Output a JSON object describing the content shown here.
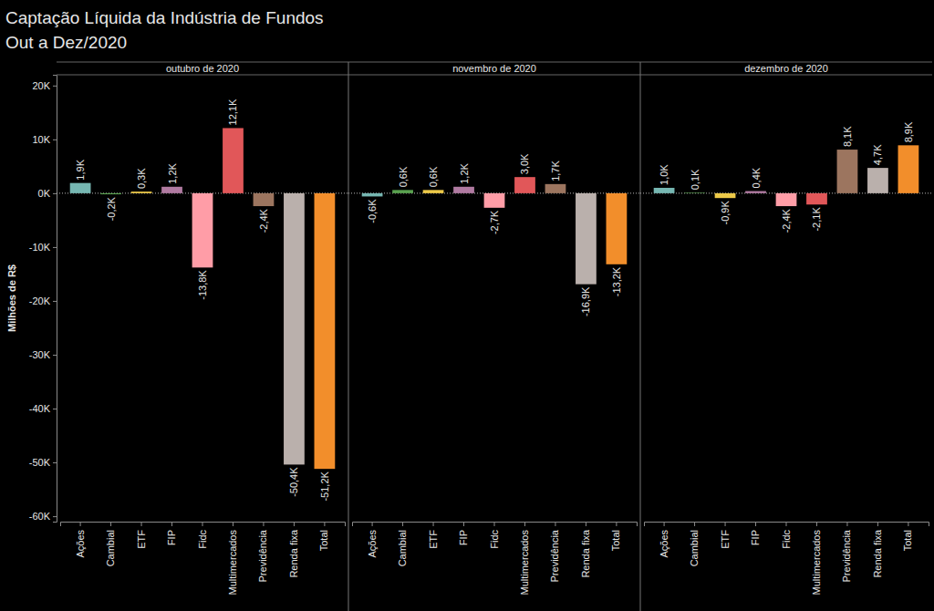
{
  "chart_data": {
    "type": "bar",
    "title": "Captação Líquida da Indústria de Fundos",
    "subtitle": "Out a Dez/2020",
    "y_label": "Milhões de R$",
    "ylim": [
      -61000,
      22000
    ],
    "yticks": [
      {
        "value": -60000,
        "label": "-60K"
      },
      {
        "value": -50000,
        "label": "-50K"
      },
      {
        "value": -40000,
        "label": "-40K"
      },
      {
        "value": -30000,
        "label": "-30K"
      },
      {
        "value": -20000,
        "label": "-20K"
      },
      {
        "value": -10000,
        "label": "-10K"
      },
      {
        "value": 0,
        "label": "0K"
      },
      {
        "value": 10000,
        "label": "10K"
      },
      {
        "value": 20000,
        "label": "20K"
      }
    ],
    "grid": false,
    "data_labels": true,
    "panels": [
      {
        "title": "outubro de 2020",
        "categories": [
          "Ações",
          "Cambial",
          "ETF",
          "FIP",
          "Fidc",
          "Multimercados",
          "Previdência",
          "Renda fixa",
          "Total"
        ],
        "values": [
          1900,
          -200,
          300,
          1200,
          -13800,
          12100,
          -2400,
          -50400,
          -51200
        ],
        "value_labels": [
          "1,9K",
          "-0,2K",
          "0,3K",
          "1,2K",
          "-13,8K",
          "12,1K",
          "-2,4K",
          "-50,4K",
          "-51,2K"
        ],
        "colors": [
          "#76b7b2",
          "#59a14f",
          "#edc948",
          "#b07aa1",
          "#ff9da7",
          "#e15759",
          "#9c755f",
          "#bab0ac",
          "#f28e2b"
        ]
      },
      {
        "title": "novembro de 2020",
        "categories": [
          "Ações",
          "Cambial",
          "ETF",
          "FIP",
          "Fidc",
          "Multimercados",
          "Previdência",
          "Renda fixa",
          "Total"
        ],
        "values": [
          -600,
          600,
          600,
          1200,
          -2700,
          3000,
          1700,
          -16900,
          -13200
        ],
        "value_labels": [
          "-0,6K",
          "0,6K",
          "0,6K",
          "1,2K",
          "-2,7K",
          "3,0K",
          "1,7K",
          "-16,9K",
          "-13,2K"
        ],
        "colors": [
          "#76b7b2",
          "#59a14f",
          "#edc948",
          "#b07aa1",
          "#ff9da7",
          "#e15759",
          "#9c755f",
          "#bab0ac",
          "#f28e2b"
        ]
      },
      {
        "title": "dezembro de 2020",
        "categories": [
          "Ações",
          "Cambial",
          "ETF",
          "FIP",
          "Fidc",
          "Multimercados",
          "Previdência",
          "Renda fixa",
          "Total"
        ],
        "values": [
          1000,
          100,
          -900,
          400,
          -2400,
          -2100,
          8100,
          4700,
          8900
        ],
        "value_labels": [
          "1,0K",
          "0,1K",
          "-0,9K",
          "0,4K",
          "-2,4K",
          "-2,1K",
          "8,1K",
          "4,7K",
          "8,9K"
        ],
        "colors": [
          "#76b7b2",
          "#59a14f",
          "#edc948",
          "#b07aa1",
          "#ff9da7",
          "#e15759",
          "#9c755f",
          "#bab0ac",
          "#f28e2b"
        ]
      }
    ]
  }
}
